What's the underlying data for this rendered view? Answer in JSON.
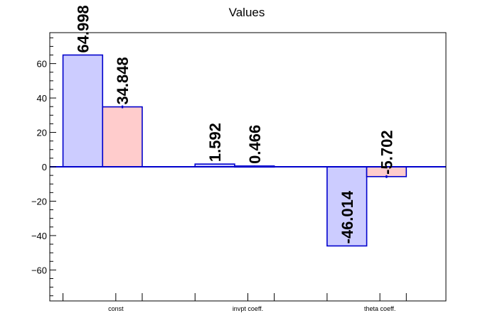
{
  "chart_data": {
    "type": "bar",
    "title": "Values",
    "xlabel": "",
    "ylabel": "",
    "categories": [
      "const",
      "invpt coeff.",
      "theta coeff."
    ],
    "series": [
      {
        "values": [
          64.998,
          1.592,
          -46.014
        ],
        "labels": [
          "64.998",
          "1.592",
          "-46.014"
        ],
        "fill": "#ccccff",
        "stroke": "#0000cc"
      },
      {
        "values": [
          34.848,
          0.466,
          -5.702
        ],
        "labels": [
          "34.848",
          "0.466",
          "-5.702"
        ],
        "fill": "#ffcccc",
        "stroke": "#0000cc"
      }
    ],
    "errors": [
      [
        0,
        0,
        0
      ],
      [
        0.8,
        0.3,
        0.8
      ]
    ],
    "ylim": [
      -78,
      78
    ],
    "yticks": [
      -60,
      -40,
      -20,
      0,
      20,
      40,
      60
    ],
    "ytick_labels": [
      "−60",
      "−40",
      "−20",
      "0",
      "20",
      "40",
      "60"
    ],
    "grid": false,
    "legend": "none",
    "colors": {
      "axis": "#000000",
      "zero_line": "#0000cc",
      "bar_outline": "#0000cc"
    }
  }
}
